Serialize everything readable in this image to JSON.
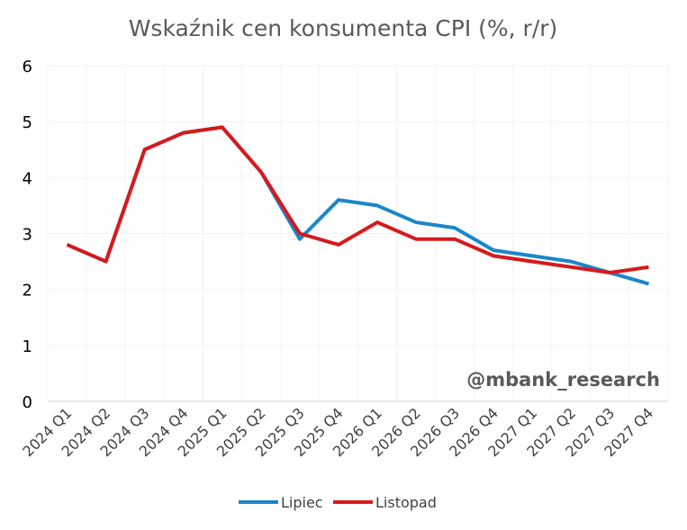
{
  "chart_data": {
    "type": "line",
    "title": "Wskaźnik cen konsumenta CPI (%, r/r)",
    "watermark": "@mbank_research",
    "categories": [
      "2024 Q1",
      "2024 Q2",
      "2024 Q3",
      "2024 Q4",
      "2025 Q1",
      "2025 Q2",
      "2025 Q3",
      "2025 Q4",
      "2026 Q1",
      "2026 Q2",
      "2026 Q3",
      "2026 Q4",
      "2027 Q1",
      "2027 Q2",
      "2027 Q3",
      "2027 Q4"
    ],
    "ylim": [
      0,
      6
    ],
    "yticks": [
      0,
      1,
      2,
      3,
      4,
      5,
      6
    ],
    "grid": true,
    "legend_position": "bottom",
    "series": [
      {
        "name": "Lipiec",
        "color": "#1a87c9",
        "values": [
          2.8,
          2.5,
          4.5,
          4.8,
          4.9,
          4.1,
          2.9,
          3.6,
          3.5,
          3.2,
          3.1,
          2.7,
          2.6,
          2.5,
          2.3,
          2.1
        ]
      },
      {
        "name": "Listopad",
        "color": "#d7191c",
        "values": [
          2.8,
          2.5,
          4.5,
          4.8,
          4.9,
          4.1,
          3.0,
          2.8,
          3.2,
          2.9,
          2.9,
          2.6,
          2.5,
          2.4,
          2.3,
          2.4
        ]
      }
    ]
  }
}
